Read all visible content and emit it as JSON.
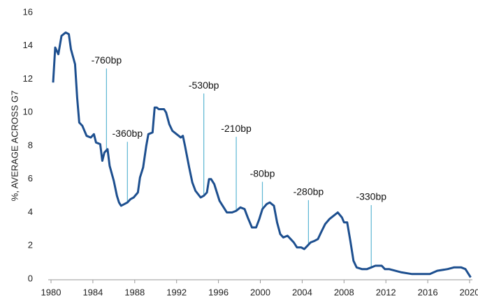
{
  "chart_data": {
    "type": "line",
    "y_label": "%, AVERAGE ACROSS G7",
    "x": [
      1980.2,
      1980.4,
      1980.7,
      1981.0,
      1981.4,
      1981.7,
      1981.9,
      1982.3,
      1982.5,
      1982.7,
      1983.0,
      1983.4,
      1983.8,
      1984.1,
      1984.3,
      1984.7,
      1984.9,
      1985.1,
      1985.4,
      1985.6,
      1986.0,
      1986.3,
      1986.5,
      1986.7,
      1987.0,
      1987.3,
      1987.6,
      1987.9,
      1988.3,
      1988.5,
      1988.8,
      1989.1,
      1989.3,
      1989.7,
      1989.9,
      1990.1,
      1990.3,
      1990.8,
      1991.0,
      1991.3,
      1991.6,
      1992.0,
      1992.4,
      1992.6,
      1992.8,
      1993.2,
      1993.5,
      1993.8,
      1994.3,
      1994.6,
      1994.9,
      1995.1,
      1995.3,
      1995.6,
      1995.8,
      1996.1,
      1996.5,
      1996.8,
      1997.3,
      1997.7,
      1998.1,
      1998.5,
      1998.8,
      1999.2,
      1999.6,
      1999.9,
      2000.2,
      2000.6,
      2000.9,
      2001.3,
      2001.6,
      2001.9,
      2002.2,
      2002.6,
      2002.9,
      2003.2,
      2003.5,
      2003.9,
      2004.2,
      2004.5,
      2004.8,
      2005.2,
      2005.5,
      2005.8,
      2006.2,
      2006.6,
      2007.0,
      2007.4,
      2007.8,
      2008.0,
      2008.3,
      2008.6,
      2008.9,
      2009.2,
      2009.7,
      2010.2,
      2010.6,
      2011.0,
      2011.3,
      2011.6,
      2011.9,
      2012.3,
      2012.9,
      2013.5,
      2014.5,
      2015.5,
      2016.2,
      2016.9,
      2017.9,
      2018.5,
      2019.2,
      2019.6,
      2019.9,
      2020.1
    ],
    "series": [
      {
        "color": "#1d4f8f",
        "values": [
          11.8,
          13.9,
          13.5,
          14.6,
          14.8,
          14.7,
          13.8,
          12.9,
          10.9,
          9.4,
          9.2,
          8.6,
          8.5,
          8.7,
          8.2,
          8.1,
          7.1,
          7.6,
          7.8,
          6.8,
          5.9,
          5.0,
          4.6,
          4.4,
          4.5,
          4.6,
          4.8,
          4.9,
          5.2,
          6.1,
          6.7,
          8.0,
          8.7,
          8.8,
          10.3,
          10.3,
          10.2,
          10.2,
          10.0,
          9.3,
          8.9,
          8.7,
          8.5,
          8.6,
          8.0,
          6.7,
          5.8,
          5.3,
          4.9,
          5.0,
          5.2,
          6.0,
          6.0,
          5.7,
          5.3,
          4.7,
          4.3,
          4.0,
          4.0,
          4.1,
          4.3,
          4.2,
          3.7,
          3.1,
          3.1,
          3.6,
          4.2,
          4.5,
          4.6,
          4.4,
          3.4,
          2.7,
          2.5,
          2.6,
          2.4,
          2.2,
          1.9,
          1.9,
          1.8,
          2.0,
          2.2,
          2.3,
          2.4,
          2.8,
          3.3,
          3.6,
          3.8,
          4.0,
          3.7,
          3.4,
          3.4,
          2.3,
          1.1,
          0.7,
          0.6,
          0.6,
          0.7,
          0.8,
          0.8,
          0.8,
          0.6,
          0.6,
          0.5,
          0.4,
          0.3,
          0.3,
          0.3,
          0.5,
          0.6,
          0.7,
          0.7,
          0.6,
          0.3,
          0.1
        ]
      }
    ],
    "annotation_color": "#5cb6d3",
    "annotations": [
      {
        "text": "-760bp",
        "x": 1985.3,
        "y": 13.1
      },
      {
        "text": "-360bp",
        "x": 1987.3,
        "y": 8.7
      },
      {
        "text": "-530bp",
        "x": 1994.6,
        "y": 11.6
      },
      {
        "text": "-210bp",
        "x": 1997.7,
        "y": 9.0
      },
      {
        "text": "-80bp",
        "x": 2000.2,
        "y": 6.3
      },
      {
        "text": "-280bp",
        "x": 2004.6,
        "y": 5.2
      },
      {
        "text": "-330bp",
        "x": 2010.6,
        "y": 4.9
      }
    ],
    "xlim": [
      1980,
      2020
    ],
    "xticks": [
      1980,
      1984,
      1988,
      1992,
      1996,
      2000,
      2004,
      2008,
      2012,
      2016,
      2020
    ],
    "ylim": [
      0,
      16
    ],
    "yticks": [
      0,
      2,
      4,
      6,
      8,
      10,
      12,
      14,
      16
    ]
  }
}
